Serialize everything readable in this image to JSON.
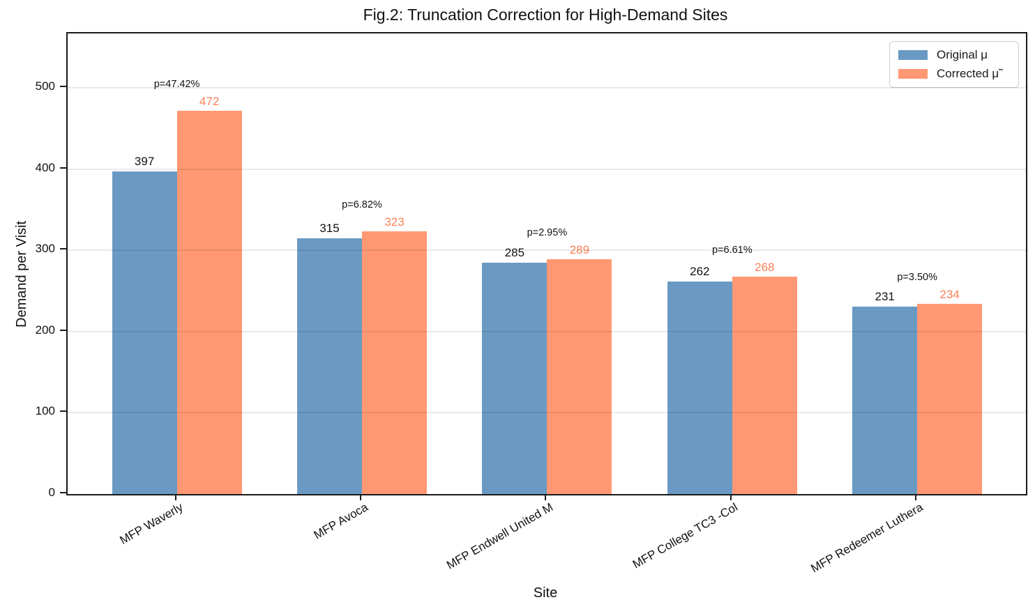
{
  "chart_data": {
    "type": "bar",
    "title": "Fig.2: Truncation Correction for High-Demand Sites",
    "xlabel": "Site",
    "ylabel": "Demand per Visit",
    "categories": [
      "MFP Waverly",
      "MFP Avoca",
      "MFP Endwell United M",
      "MFP College TC3 -Col",
      "MFP Redeemer Luthera"
    ],
    "series": [
      {
        "name": "Original μ",
        "color": "#6a9ac3",
        "label_color": "#111111",
        "values": [
          397,
          315,
          285,
          262,
          231
        ]
      },
      {
        "name": "Corrected μ̃",
        "color": "#ff9873",
        "label_color": "#fa7f55",
        "values": [
          472,
          323,
          289,
          268,
          234
        ]
      }
    ],
    "annotations": [
      "p=47.42%",
      "p=6.82%",
      "p=2.95%",
      "p=6.61%",
      "p=3.50%"
    ],
    "yticks": [
      0,
      100,
      200,
      300,
      400,
      500
    ],
    "ylim": [
      0,
      567
    ],
    "grid": "horizontal-above-bars",
    "legend_position": "top-right-inside",
    "background": "#ffffff",
    "spine_color": "#1a1a1a"
  }
}
